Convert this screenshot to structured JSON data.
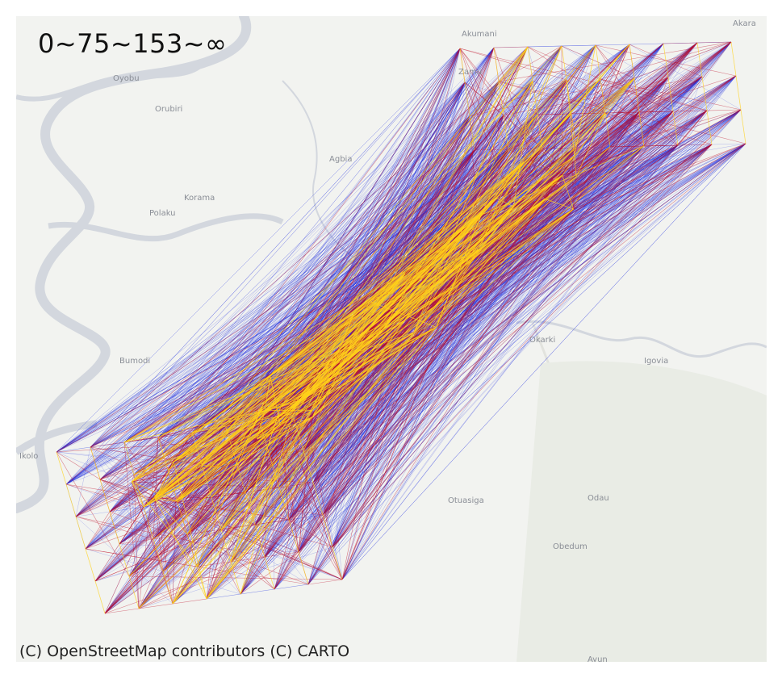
{
  "legend": {
    "text": "0~75~153~∞"
  },
  "attribution": "(C) OpenStreetMap contributors (C) CARTO",
  "places": [
    {
      "id": "akara",
      "label": "Akara"
    },
    {
      "id": "akumani",
      "label": "Akumani"
    },
    {
      "id": "oyobu",
      "label": "Oyobu"
    },
    {
      "id": "orubiri",
      "label": "Orubiri"
    },
    {
      "id": "agbia",
      "label": "Agbia"
    },
    {
      "id": "korama",
      "label": "Korama"
    },
    {
      "id": "polaku",
      "label": "Polaku"
    },
    {
      "id": "okarki",
      "label": "Okarki"
    },
    {
      "id": "igovia",
      "label": "Igovia"
    },
    {
      "id": "bumodi",
      "label": "Bumodi"
    },
    {
      "id": "ikolo",
      "label": "Ikolo"
    },
    {
      "id": "otuasiga",
      "label": "Otuasiga"
    },
    {
      "id": "odau",
      "label": "Odau"
    },
    {
      "id": "obedum",
      "label": "Obedum"
    },
    {
      "id": "ayun",
      "label": "Ayun"
    },
    {
      "id": "zamu",
      "label": "Zamu"
    }
  ],
  "colors": {
    "background": "#f2f3f0",
    "river": "#d3d7de",
    "low_band": "#1f2fe0",
    "mid_band": "#c0102a",
    "high_band": "#ffd21a"
  }
}
